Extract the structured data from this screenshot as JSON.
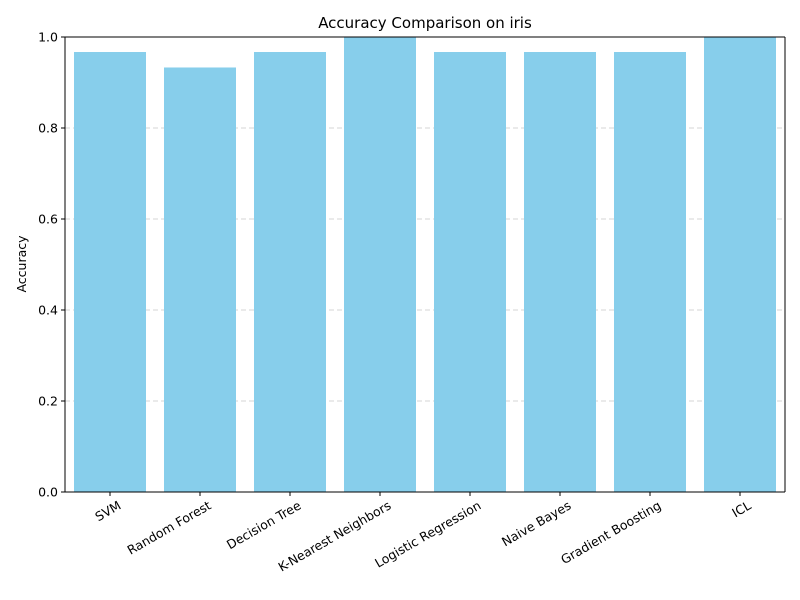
{
  "chart_data": {
    "type": "bar",
    "title": "Accuracy Comparison on iris",
    "xlabel": "",
    "ylabel": "Accuracy",
    "categories": [
      "SVM",
      "Random Forest",
      "Decision Tree",
      "K-Nearest Neighbors",
      "Logistic Regression",
      "Naive Bayes",
      "Gradient Boosting",
      "ICL"
    ],
    "values": [
      0.967,
      0.933,
      0.967,
      1.0,
      0.967,
      0.967,
      0.967,
      1.0
    ],
    "ylim": [
      0,
      1.0
    ],
    "yticks": [
      "0.0",
      "0.2",
      "0.4",
      "0.6",
      "0.8",
      "1.0"
    ],
    "grid": "y-dashed",
    "bar_color": "#87ceeb"
  }
}
